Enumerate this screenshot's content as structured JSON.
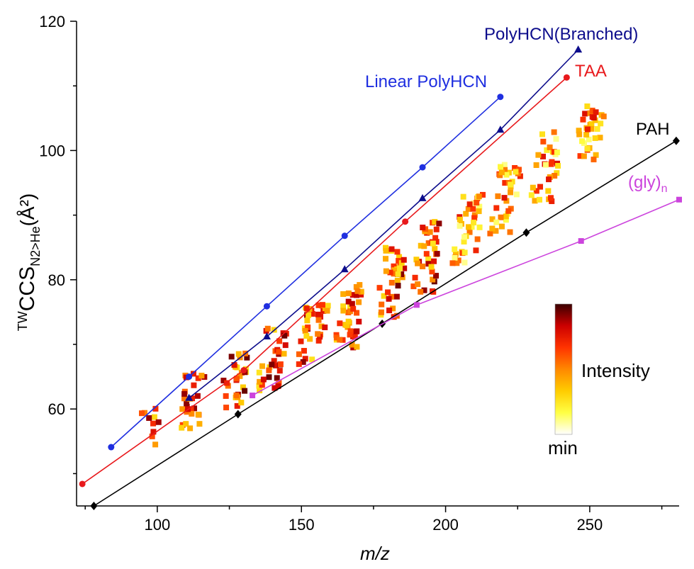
{
  "chart_data": {
    "type": "scatter",
    "xlabel": "m/z",
    "ylabel": {
      "sup": "TW",
      "main": "CCS",
      "sub": "N2>He",
      "unit": "(Å²)"
    },
    "xlim": [
      72,
      281
    ],
    "ylim": [
      45,
      120
    ],
    "xticks": [
      100,
      150,
      200,
      250
    ],
    "yticks": [
      60,
      80,
      100,
      120
    ],
    "series": [
      {
        "name": "Linear PolyHCN",
        "color": "#1f2fe0",
        "marker": "circle",
        "x": [
          84,
          111,
          138,
          165,
          192,
          219
        ],
        "y": [
          54.1,
          65.0,
          75.9,
          86.8,
          97.4,
          108.3
        ]
      },
      {
        "name": "PolyHCN(Branched)",
        "color": "#0d0d8c",
        "marker": "triangle",
        "x": [
          111,
          138,
          165,
          192,
          219,
          246
        ],
        "y": [
          61.7,
          71.2,
          81.6,
          92.6,
          103.2,
          115.6
        ]
      },
      {
        "name": "TAA",
        "color": "#e8191c",
        "marker": "circle",
        "x": [
          74,
          130,
          186,
          242
        ],
        "y": [
          48.4,
          66.0,
          89.0,
          111.3
        ]
      },
      {
        "name": "PAH",
        "color": "#000000",
        "marker": "diamond",
        "x": [
          78,
          128,
          178,
          228,
          280
        ],
        "y": [
          45.0,
          59.2,
          73.2,
          87.3,
          101.5
        ]
      },
      {
        "name": "(gly)",
        "name_sub": "n",
        "color": "#cc44dd",
        "marker": "square",
        "x": [
          133,
          190,
          247,
          281
        ],
        "y": [
          62.1,
          76.1,
          86.0,
          92.4
        ]
      }
    ],
    "clusters": [
      {
        "cx": 97,
        "cy": 57.5,
        "n": 10,
        "spread": 3.0
      },
      {
        "cx": 112,
        "cy": 61.5,
        "n": 28,
        "spread": 4.5
      },
      {
        "cx": 127,
        "cy": 64.5,
        "n": 28,
        "spread": 4.5
      },
      {
        "cx": 140,
        "cy": 67.5,
        "n": 34,
        "spread": 5.0
      },
      {
        "cx": 154,
        "cy": 71.5,
        "n": 38,
        "spread": 5.0
      },
      {
        "cx": 167,
        "cy": 74.5,
        "n": 40,
        "spread": 5.0
      },
      {
        "cx": 181,
        "cy": 79.5,
        "n": 40,
        "spread": 5.5
      },
      {
        "cx": 194,
        "cy": 83.5,
        "n": 40,
        "spread": 5.5
      },
      {
        "cx": 208,
        "cy": 88.0,
        "n": 40,
        "spread": 5.5
      },
      {
        "cx": 221,
        "cy": 92.5,
        "n": 38,
        "spread": 5.5
      },
      {
        "cx": 235,
        "cy": 97.5,
        "n": 34,
        "spread": 5.5
      },
      {
        "cx": 250,
        "cy": 102.5,
        "n": 34,
        "spread": 4.5
      }
    ],
    "colorbar": {
      "label": "Intensity",
      "min_label": "min",
      "colors": [
        "#ffffff",
        "#ffff44",
        "#ffcc00",
        "#ff8800",
        "#ff3300",
        "#cc0000",
        "#3a0000"
      ]
    }
  }
}
